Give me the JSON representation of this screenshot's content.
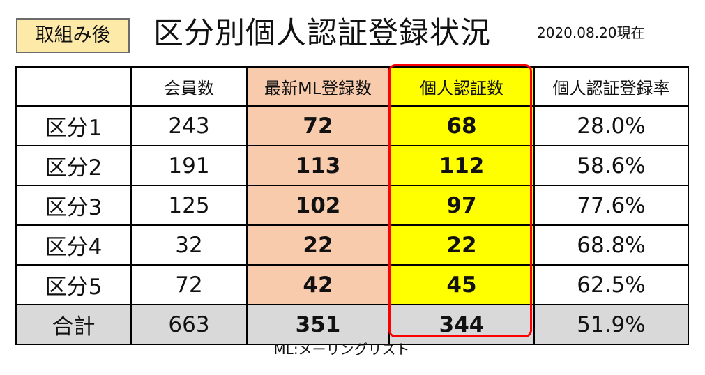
{
  "badge": "取組み後",
  "title": "区分別個人認証登録状況",
  "date": "2020.08.20現在",
  "colors": {
    "badge_bg": "#fde9a8",
    "ml_col": "#f8cbad",
    "auth_col": "#ffff00",
    "total_row": "#d9d9d9",
    "highlight": "#ff0000"
  },
  "table": {
    "headers": [
      "",
      "会員数",
      "最新ML登録数",
      "個人認証数",
      "個人認証登録率"
    ],
    "rows": [
      [
        "区分1",
        "243",
        "72",
        "68",
        "28.0%"
      ],
      [
        "区分2",
        "191",
        "113",
        "112",
        "58.6%"
      ],
      [
        "区分3",
        "125",
        "102",
        "97",
        "77.6%"
      ],
      [
        "区分4",
        "32",
        "22",
        "22",
        "68.8%"
      ],
      [
        "区分5",
        "72",
        "42",
        "45",
        "62.5%"
      ]
    ],
    "total": [
      "合計",
      "663",
      "351",
      "344",
      "51.9%"
    ]
  },
  "footnote": "ML:メーリングリスト"
}
